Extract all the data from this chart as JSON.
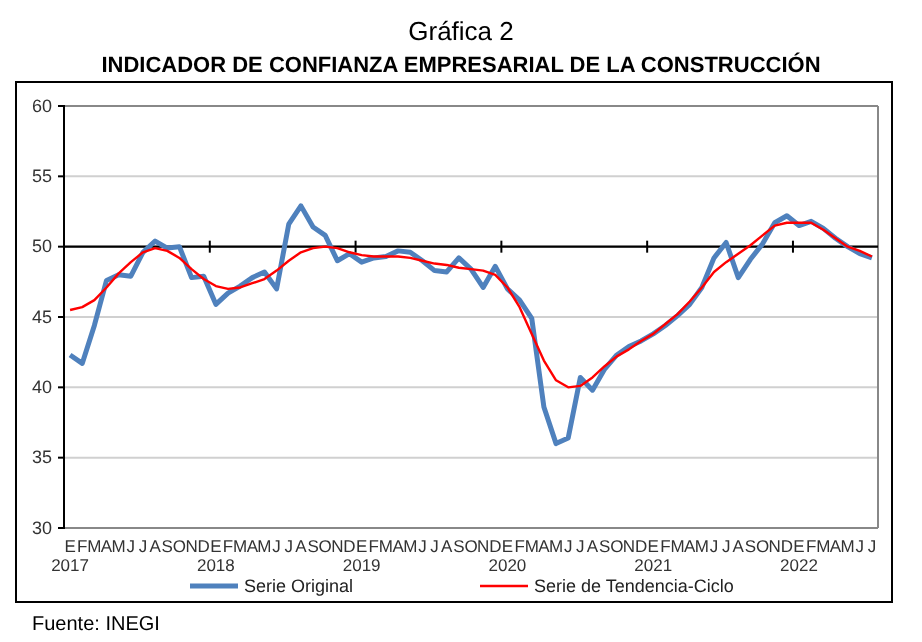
{
  "chart_data": {
    "type": "line",
    "title": "Gráfica 2",
    "subtitle": "INDICADOR DE CONFIANZA EMPRESARIAL DE LA CONSTRUCCIÓN",
    "categories": [
      "E\n2017",
      "F",
      "M",
      "A",
      "M",
      "J",
      "J",
      "A",
      "S",
      "O",
      "N",
      "D",
      "E\n2018",
      "F",
      "M",
      "A",
      "M",
      "J",
      "J",
      "A",
      "S",
      "O",
      "N",
      "D",
      "E\n2019",
      "F",
      "M",
      "A",
      "M",
      "J",
      "J",
      "A",
      "S",
      "O",
      "N",
      "D",
      "E\n2020",
      "F",
      "M",
      "A",
      "M",
      "J",
      "J",
      "A",
      "S",
      "O",
      "N",
      "D",
      "E\n2021",
      "F",
      "M",
      "A",
      "M",
      "J",
      "J",
      "A",
      "S",
      "O",
      "N",
      "D",
      "E\n2022",
      "F",
      "M",
      "A",
      "M",
      "J",
      "J"
    ],
    "series": [
      {
        "name": "Serie Original",
        "color": "#4f81bd",
        "values": [
          42.3,
          41.7,
          44.4,
          47.6,
          48.0,
          47.9,
          49.6,
          50.4,
          49.9,
          50.0,
          47.8,
          47.9,
          45.9,
          46.7,
          47.2,
          47.8,
          48.2,
          47.0,
          51.6,
          52.9,
          51.4,
          50.8,
          49.0,
          49.5,
          48.9,
          49.2,
          49.3,
          49.7,
          49.6,
          49.0,
          48.3,
          48.2,
          49.2,
          48.4,
          47.1,
          48.6,
          47.0,
          46.2,
          44.9,
          38.6,
          36.0,
          36.4,
          40.7,
          39.8,
          41.3,
          42.3,
          42.9,
          43.3,
          43.8,
          44.4,
          45.1,
          45.9,
          47.1,
          49.2,
          50.3,
          47.8,
          49.1,
          50.2,
          51.7,
          52.2,
          51.5,
          51.8,
          51.3,
          50.6,
          50.0,
          49.5,
          49.2
        ]
      },
      {
        "name": "Serie de Tendencia-Ciclo",
        "color": "#ff0000",
        "values": [
          45.5,
          45.7,
          46.2,
          47.1,
          48.1,
          48.9,
          49.6,
          49.9,
          49.7,
          49.2,
          48.4,
          47.7,
          47.2,
          47.0,
          47.1,
          47.4,
          47.7,
          48.3,
          49.0,
          49.6,
          49.9,
          50.0,
          49.9,
          49.6,
          49.4,
          49.3,
          49.3,
          49.3,
          49.2,
          49.0,
          48.8,
          48.7,
          48.5,
          48.4,
          48.3,
          48.0,
          47.1,
          45.7,
          43.8,
          41.9,
          40.5,
          40.0,
          40.1,
          40.7,
          41.5,
          42.2,
          42.7,
          43.3,
          43.8,
          44.5,
          45.2,
          46.1,
          47.1,
          48.2,
          48.9,
          49.5,
          50.1,
          50.8,
          51.5,
          51.7,
          51.7,
          51.7,
          51.2,
          50.6,
          50.0,
          49.7,
          49.3
        ]
      }
    ],
    "ylim": [
      30,
      60
    ],
    "yticks": [
      30,
      35,
      40,
      45,
      50,
      55,
      60
    ],
    "grid": "y",
    "legend": "bottom",
    "marker": "none",
    "line_style": "solid",
    "ref_lines": [
      {
        "axis": "y",
        "value": 50,
        "color": "#000000"
      }
    ],
    "annotations": [
      "Fuente: INEGI"
    ]
  }
}
